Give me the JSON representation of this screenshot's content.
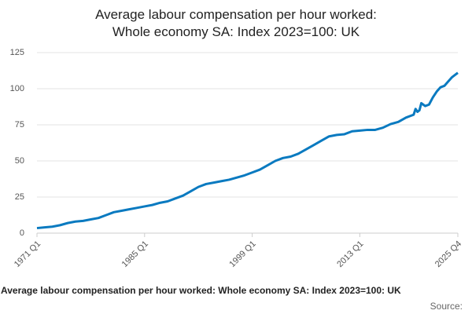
{
  "chart_data": {
    "type": "line",
    "title": "Average labour compensation per hour worked: Whole economy SA: Index 2023=100: UK",
    "footer_title": "Average labour compensation per hour worked: Whole economy SA: Index 2023=100: UK",
    "source": "Source:",
    "x": [
      1971,
      1972,
      1973,
      1974,
      1975,
      1976,
      1977,
      1978,
      1979,
      1980,
      1981,
      1982,
      1983,
      1984,
      1985,
      1986,
      1987,
      1988,
      1989,
      1990,
      1991,
      1992,
      1993,
      1994,
      1995,
      1996,
      1997,
      1998,
      1999,
      2000,
      2001,
      2002,
      2003,
      2004,
      2005,
      2006,
      2007,
      2008,
      2009,
      2010,
      2011,
      2012,
      2013,
      2014,
      2015,
      2016,
      2017,
      2018,
      2019,
      2020,
      2020.25,
      2020.5,
      2020.75,
      2021,
      2021.25,
      2021.5,
      2022,
      2022.5,
      2023,
      2023.5,
      2024,
      2024.5,
      2025,
      2025.5,
      2025.75
    ],
    "series": [
      {
        "name": "Index 2023=100",
        "color": "#0a7ac0",
        "values": [
          3.5,
          4,
          4.5,
          5.5,
          7,
          8,
          8.5,
          9.5,
          10.5,
          12.5,
          14.5,
          15.5,
          16.5,
          17.5,
          18.5,
          19.5,
          21,
          22,
          24,
          26,
          29,
          32,
          34,
          35,
          36,
          37,
          38.5,
          40,
          42,
          44,
          47,
          50,
          52,
          53,
          55,
          58,
          61,
          64,
          67,
          68,
          68.5,
          70.5,
          71,
          71.5,
          71.5,
          73,
          75.5,
          77,
          80,
          82,
          86,
          84,
          85,
          90,
          89,
          88,
          89,
          94,
          98,
          101,
          102,
          105,
          108,
          110,
          111
        ]
      }
    ],
    "xlim": [
      1971,
      2025.75
    ],
    "xticks": [
      {
        "value": 1971,
        "label": "1971 Q1"
      },
      {
        "value": 1985,
        "label": "1985 Q1"
      },
      {
        "value": 1999,
        "label": "1999 Q1"
      },
      {
        "value": 2013,
        "label": "2013 Q1"
      },
      {
        "value": 2025.75,
        "label": "2025 Q4"
      }
    ],
    "ylim": [
      0,
      125
    ],
    "yticks": [
      0,
      25,
      50,
      75,
      100,
      125
    ],
    "grid": true
  }
}
